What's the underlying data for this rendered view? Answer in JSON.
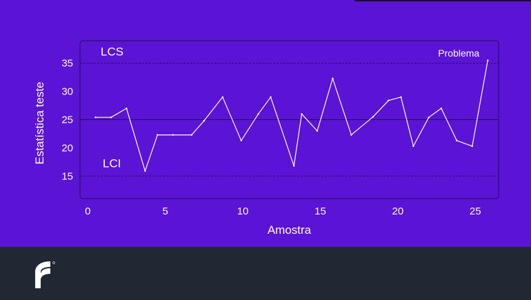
{
  "colors": {
    "background": "#5b13d6",
    "footer": "#1f2833",
    "line": "#ffffff",
    "frame": "#1c1740",
    "limit_line": "#1c1740"
  },
  "chart_data": {
    "type": "line",
    "xlabel": "Amostra",
    "ylabel": "Estatística teste",
    "xlim": [
      -0.5,
      26.5
    ],
    "ylim": [
      11,
      39
    ],
    "xticks": [
      0,
      5,
      10,
      15,
      20,
      25
    ],
    "yticks": [
      15,
      20,
      25,
      30,
      35
    ],
    "grid": false,
    "series": [
      {
        "x": [
          0.5,
          1.5,
          2.5,
          3.7,
          4.5,
          5.5,
          6.7,
          7.5,
          8.7,
          9.9,
          11.0,
          11.8,
          13.3,
          13.8,
          14.8,
          15.8,
          17.0,
          18.4,
          19.4,
          20.2,
          21.0,
          22.0,
          22.8,
          23.8,
          24.8,
          25.8
        ],
        "y": [
          25.4,
          25.4,
          27.0,
          15.9,
          22.3,
          22.3,
          22.3,
          24.8,
          29.0,
          21.3,
          26.0,
          29.0,
          16.8,
          26.0,
          23.0,
          32.3,
          22.3,
          25.5,
          28.4,
          29.0,
          20.3,
          25.4,
          27.0,
          21.3,
          20.3,
          35.5
        ]
      }
    ],
    "reference_lines": [
      {
        "y": 35,
        "label": "LCS",
        "style": "dashed"
      },
      {
        "y": 25,
        "label": "",
        "style": "solid"
      },
      {
        "y": 15,
        "label": "LCI",
        "style": "dashed"
      }
    ],
    "annotations": [
      {
        "text": "Problema",
        "x": 25.8,
        "y": 35.5
      }
    ]
  }
}
